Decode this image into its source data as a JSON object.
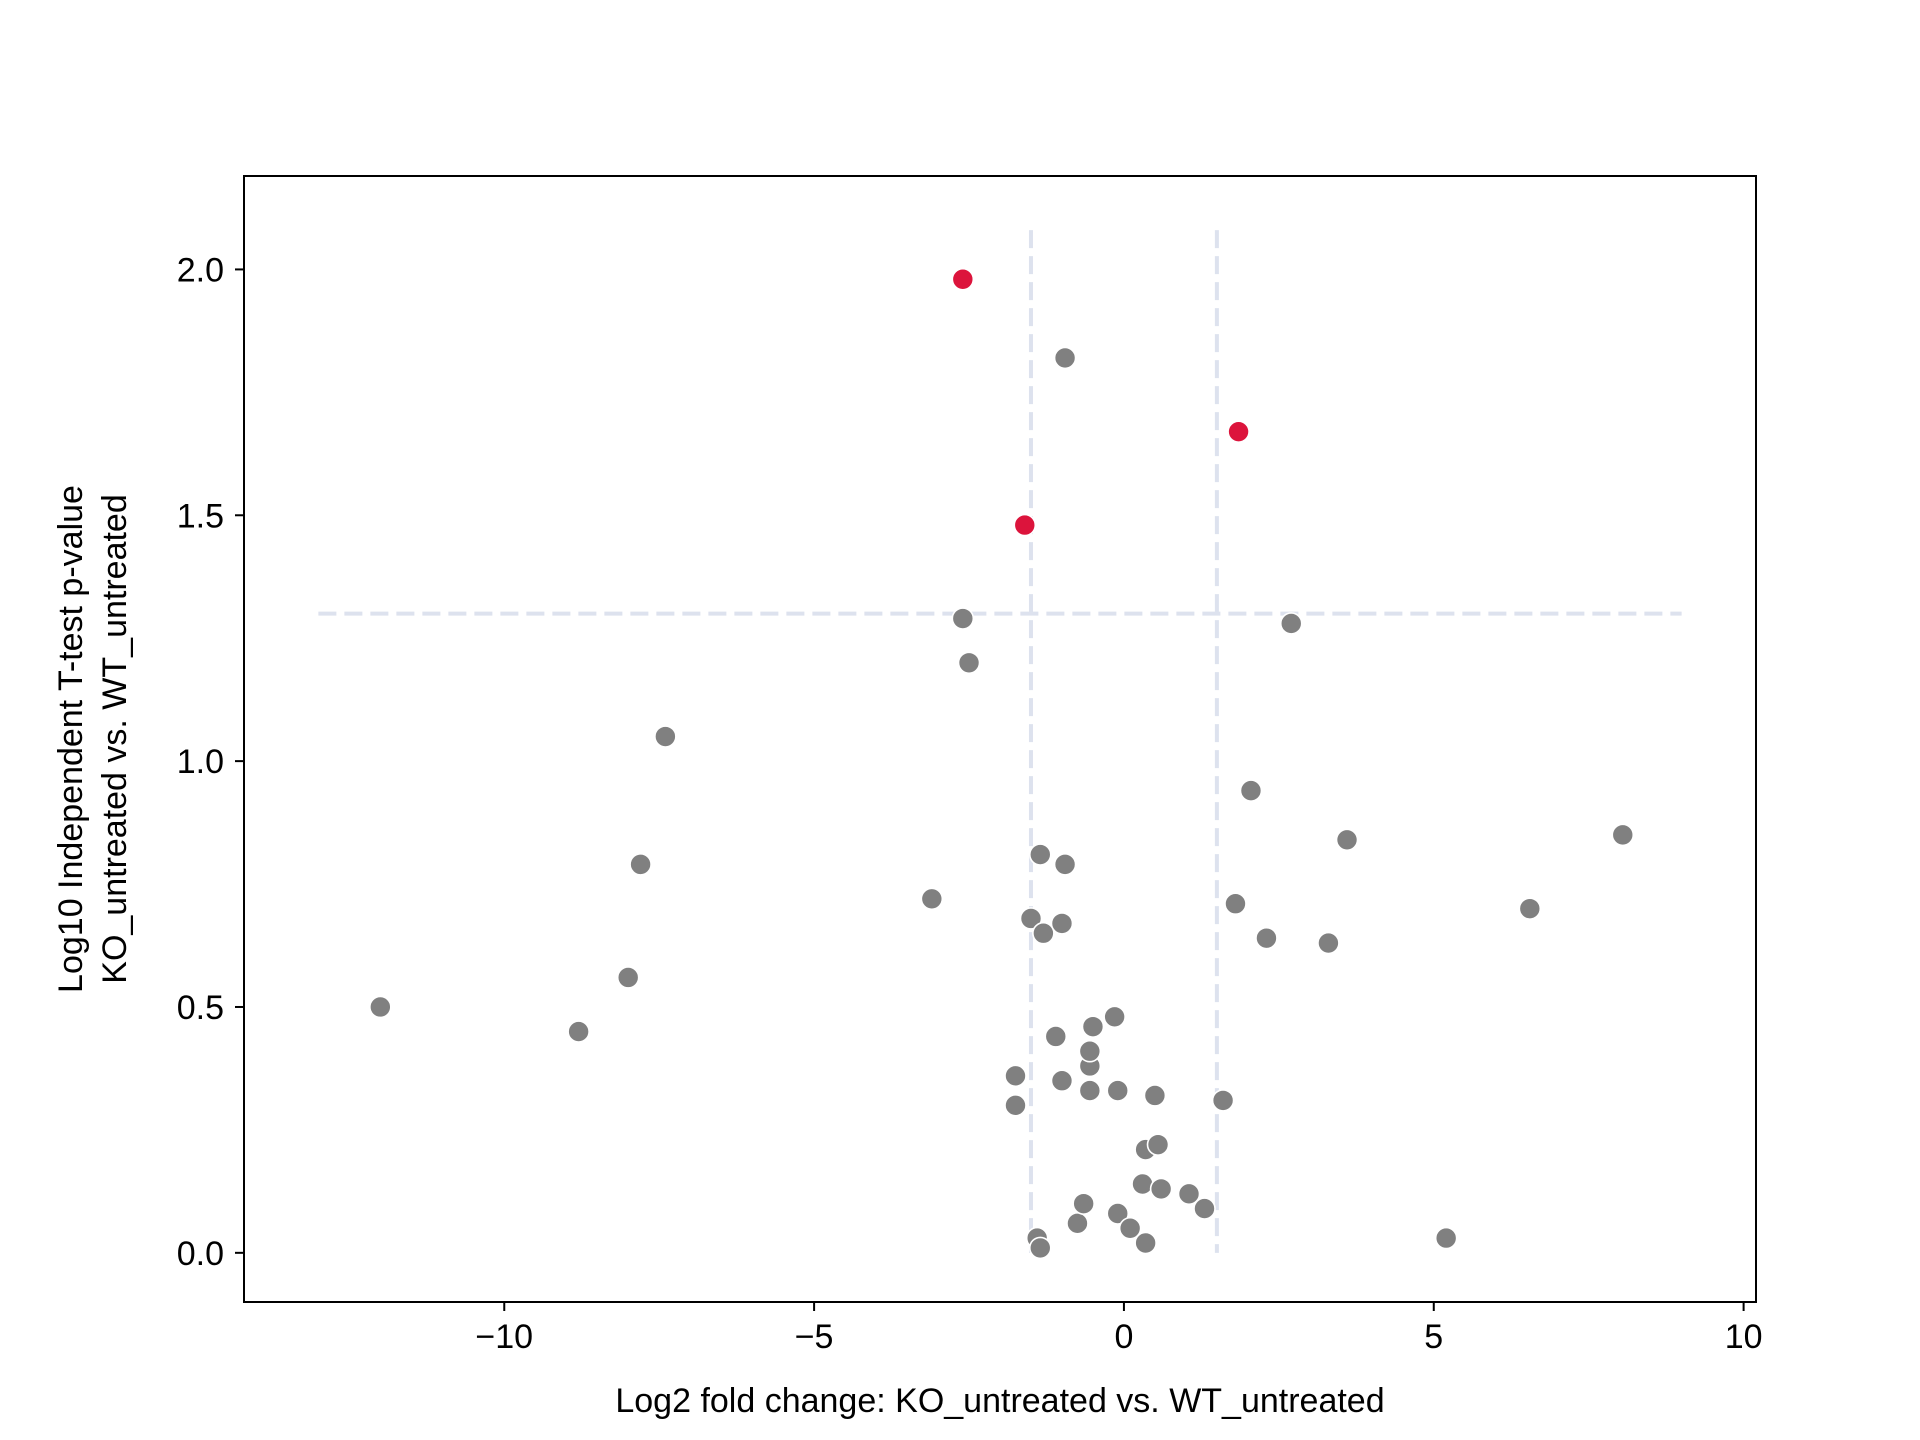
{
  "chart_data": {
    "type": "scatter",
    "title": "",
    "xlabel": "Log2 fold change: KO_untreated vs. WT_untreated",
    "ylabel_lines": [
      "Log10 Independent T-test p-value",
      "KO_untreated vs. WT_untreated"
    ],
    "xlim": [
      -14.2,
      10.2
    ],
    "ylim": [
      -0.1,
      2.19
    ],
    "xticks": [
      {
        "value": -10,
        "label": "−10"
      },
      {
        "value": -5,
        "label": "−5"
      },
      {
        "value": 0,
        "label": "0"
      },
      {
        "value": 5,
        "label": "5"
      },
      {
        "value": 10,
        "label": "10"
      }
    ],
    "yticks": [
      {
        "value": 0.0,
        "label": "0.0"
      },
      {
        "value": 0.5,
        "label": "0.5"
      },
      {
        "value": 1.0,
        "label": "1.0"
      },
      {
        "value": 1.5,
        "label": "1.5"
      },
      {
        "value": 2.0,
        "label": "2.0"
      }
    ],
    "thresholds": {
      "fold_change": [
        -1.5,
        1.5
      ],
      "p_value": 1.3,
      "vline_y_range": [
        0.0,
        2.08
      ],
      "hline_x_range": [
        -13.0,
        9.0
      ],
      "color": "#dde2ee"
    },
    "grid": false,
    "legend": "none",
    "series": [
      {
        "color": "#808080",
        "points": [
          [
            -12.0,
            0.5
          ],
          [
            -8.8,
            0.45
          ],
          [
            -8.0,
            0.56
          ],
          [
            -7.8,
            0.79
          ],
          [
            -7.4,
            1.05
          ],
          [
            -3.1,
            0.72
          ],
          [
            -2.6,
            1.29
          ],
          [
            -2.5,
            1.2
          ],
          [
            -1.75,
            0.36
          ],
          [
            -1.75,
            0.3
          ],
          [
            -1.5,
            0.68
          ],
          [
            -1.35,
            0.81
          ],
          [
            -1.3,
            0.65
          ],
          [
            -1.4,
            0.03
          ],
          [
            -1.35,
            0.01
          ],
          [
            -1.1,
            0.44
          ],
          [
            -1.0,
            0.35
          ],
          [
            -1.0,
            0.67
          ],
          [
            -0.95,
            0.79
          ],
          [
            -0.95,
            1.82
          ],
          [
            -0.75,
            0.06
          ],
          [
            -0.65,
            0.1
          ],
          [
            -0.55,
            0.38
          ],
          [
            -0.55,
            0.41
          ],
          [
            -0.55,
            0.33
          ],
          [
            -0.5,
            0.46
          ],
          [
            -0.15,
            0.48
          ],
          [
            -0.1,
            0.33
          ],
          [
            -0.1,
            0.08
          ],
          [
            0.1,
            0.05
          ],
          [
            0.3,
            0.14
          ],
          [
            0.35,
            0.21
          ],
          [
            0.35,
            0.02
          ],
          [
            0.5,
            0.32
          ],
          [
            0.55,
            0.22
          ],
          [
            0.6,
            0.13
          ],
          [
            1.05,
            0.12
          ],
          [
            1.3,
            0.09
          ],
          [
            1.6,
            0.31
          ],
          [
            1.8,
            0.71
          ],
          [
            2.05,
            0.94
          ],
          [
            2.3,
            0.64
          ],
          [
            2.7,
            1.28
          ],
          [
            3.3,
            0.63
          ],
          [
            3.6,
            0.84
          ],
          [
            5.2,
            0.03
          ],
          [
            6.55,
            0.7
          ],
          [
            8.05,
            0.85
          ]
        ]
      },
      {
        "color": "#dc143c",
        "points": [
          [
            -2.6,
            1.98
          ],
          [
            -1.6,
            1.48
          ],
          [
            1.85,
            1.67
          ]
        ]
      }
    ]
  }
}
